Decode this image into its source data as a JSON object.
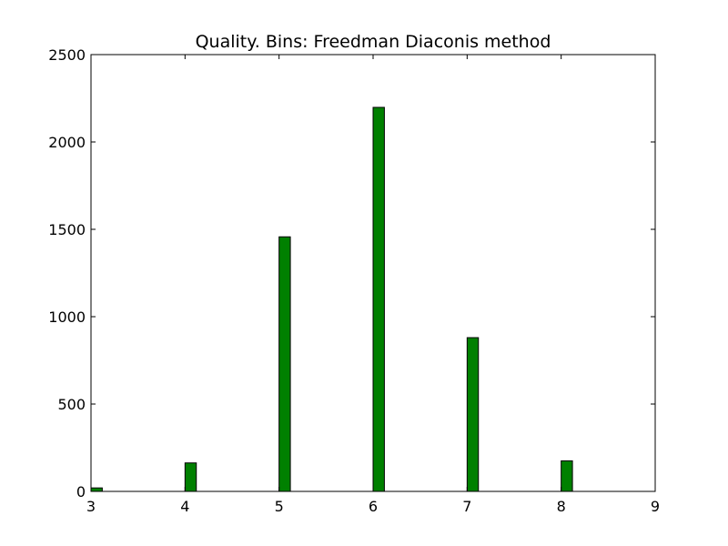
{
  "chart_data": {
    "type": "bar",
    "title": "Quality. Bins: Freedman Diaconis method",
    "xlabel": "",
    "ylabel": "",
    "xlim": [
      3,
      9
    ],
    "ylim": [
      0,
      2500
    ],
    "x_ticks": [
      3,
      4,
      5,
      6,
      7,
      8,
      9
    ],
    "y_ticks": [
      0,
      500,
      1000,
      1500,
      2000,
      2500
    ],
    "bin_width": 0.12,
    "bars": [
      {
        "x": 3,
        "value": 20
      },
      {
        "x": 4,
        "value": 163
      },
      {
        "x": 5,
        "value": 1457
      },
      {
        "x": 6,
        "value": 2198
      },
      {
        "x": 7,
        "value": 880
      },
      {
        "x": 8,
        "value": 175
      },
      {
        "x": 9,
        "value": 5
      }
    ],
    "bar_color": "#008000",
    "edge_color": "#000000",
    "grid": false
  }
}
